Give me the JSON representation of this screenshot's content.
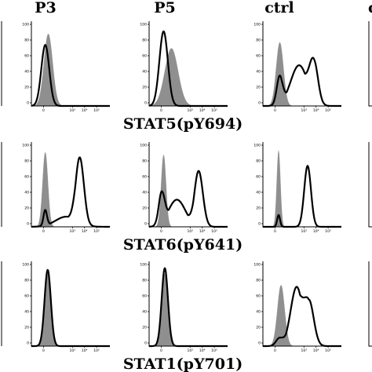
{
  "columns": [
    "P3",
    "P5",
    "ctrl",
    "c"
  ],
  "rows": [
    "STAT5(pY694)",
    "STAT6(pY641)",
    "STAT1(pY701)"
  ],
  "y_ticks": [
    "100",
    "80",
    "60",
    "40",
    "20",
    "0"
  ],
  "x_ticks": [
    "0",
    "10³",
    "10⁴",
    "10⁵"
  ],
  "colors": {
    "control_fill": "#8f8f8f",
    "sample_line": "#000000",
    "axis": "#000000"
  },
  "chart_data": {
    "type": "area",
    "ylim": [
      0,
      100
    ],
    "xlim": [
      -1,
      5.5
    ],
    "panels": [
      {
        "row": "STAT5(pY694)",
        "column": "P3",
        "control": {
          "peak": 0.4,
          "width": 0.36,
          "height": 85
        },
        "sample": {
          "components": [
            {
              "mu": 0.15,
              "sigma": 0.33,
              "height": 72
            }
          ]
        }
      },
      {
        "row": "STAT5(pY694)",
        "column": "P5",
        "control": {
          "peak": 0.85,
          "width": 0.55,
          "height": 68
        },
        "sample": {
          "components": [
            {
              "mu": 0.2,
              "sigma": 0.35,
              "height": 88
            }
          ]
        }
      },
      {
        "row": "STAT5(pY694)",
        "column": "ctrl",
        "control": {
          "peak": 0.4,
          "width": 0.3,
          "height": 75
        },
        "sample": {
          "components": [
            {
              "mu": 0.4,
              "sigma": 0.25,
              "height": 36
            },
            {
              "mu": 2.0,
              "sigma": 0.7,
              "height": 48
            },
            {
              "mu": 3.2,
              "sigma": 0.35,
              "height": 55
            }
          ]
        }
      },
      {
        "row": "STAT6(pY641)",
        "column": "P3",
        "control": {
          "peak": 0.15,
          "width": 0.22,
          "height": 88
        },
        "sample": {
          "components": [
            {
              "mu": 0.15,
              "sigma": 0.15,
              "height": 20
            },
            {
              "mu": 1.9,
              "sigma": 0.9,
              "height": 12
            },
            {
              "mu": 3.0,
              "sigma": 0.35,
              "height": 82
            }
          ]
        }
      },
      {
        "row": "STAT6(pY641)",
        "column": "P5",
        "control": {
          "peak": 0.2,
          "width": 0.2,
          "height": 85
        },
        "sample": {
          "components": [
            {
              "mu": 0.05,
              "sigma": 0.25,
              "height": 42
            },
            {
              "mu": 1.3,
              "sigma": 0.7,
              "height": 32
            },
            {
              "mu": 3.1,
              "sigma": 0.35,
              "height": 66
            }
          ]
        }
      },
      {
        "row": "STAT6(pY641)",
        "column": "ctrl",
        "control": {
          "peak": 0.3,
          "width": 0.15,
          "height": 90
        },
        "sample": {
          "components": [
            {
              "mu": 0.3,
              "sigma": 0.12,
              "height": 14
            },
            {
              "mu": 2.7,
              "sigma": 0.28,
              "height": 72
            }
          ]
        }
      },
      {
        "row": "STAT1(pY701)",
        "column": "P3",
        "control": {
          "peak": 0.35,
          "width": 0.26,
          "height": 85
        },
        "sample": {
          "components": [
            {
              "mu": 0.35,
              "sigma": 0.26,
              "height": 90
            }
          ]
        }
      },
      {
        "row": "STAT1(pY701)",
        "column": "P5",
        "control": {
          "peak": 0.3,
          "width": 0.26,
          "height": 85
        },
        "sample": {
          "components": [
            {
              "mu": 0.3,
              "sigma": 0.26,
              "height": 92
            }
          ]
        }
      },
      {
        "row": "STAT1(pY701)",
        "column": "ctrl",
        "control": {
          "peak": 0.5,
          "width": 0.3,
          "height": 72
        },
        "sample": {
          "components": [
            {
              "mu": 0.4,
              "sigma": 0.3,
              "height": 10
            },
            {
              "mu": 1.8,
              "sigma": 0.5,
              "height": 70
            },
            {
              "mu": 2.8,
              "sigma": 0.4,
              "height": 55
            }
          ]
        }
      }
    ]
  }
}
